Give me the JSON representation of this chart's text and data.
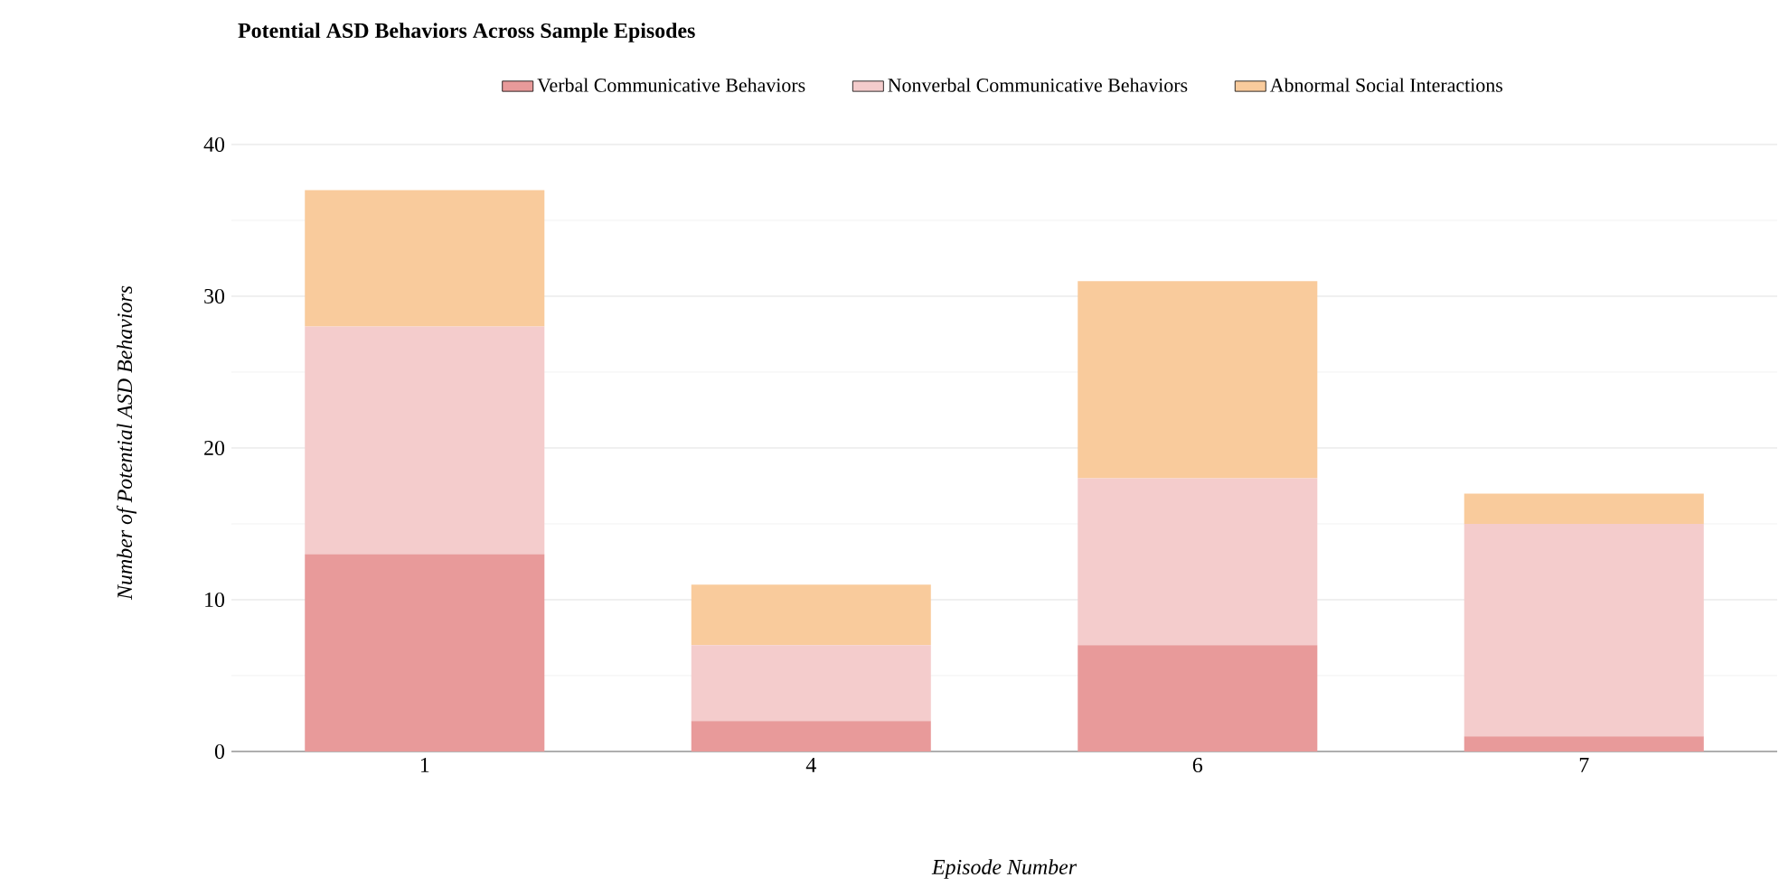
{
  "chart_data": {
    "type": "bar",
    "stacked": true,
    "title": "Potential ASD Behaviors Across Sample Episodes",
    "xlabel": "Episode Number",
    "ylabel": "Number of Potential ASD Behaviors",
    "categories": [
      "1",
      "4",
      "6",
      "7"
    ],
    "series": [
      {
        "name": "Verbal Communicative Behaviors",
        "color": "#e89a9a",
        "values": [
          13,
          2,
          7,
          1
        ]
      },
      {
        "name": "Nonverbal Communicative Behaviors",
        "color": "#f4cccc",
        "values": [
          15,
          5,
          11,
          14
        ]
      },
      {
        "name": "Abnormal Social Interactions",
        "color": "#f9cb9c",
        "values": [
          9,
          4,
          13,
          2
        ]
      }
    ],
    "ylim": [
      0,
      40
    ],
    "yticks": [
      0,
      10,
      20,
      30,
      40
    ],
    "grid": "y",
    "legend": "top"
  }
}
